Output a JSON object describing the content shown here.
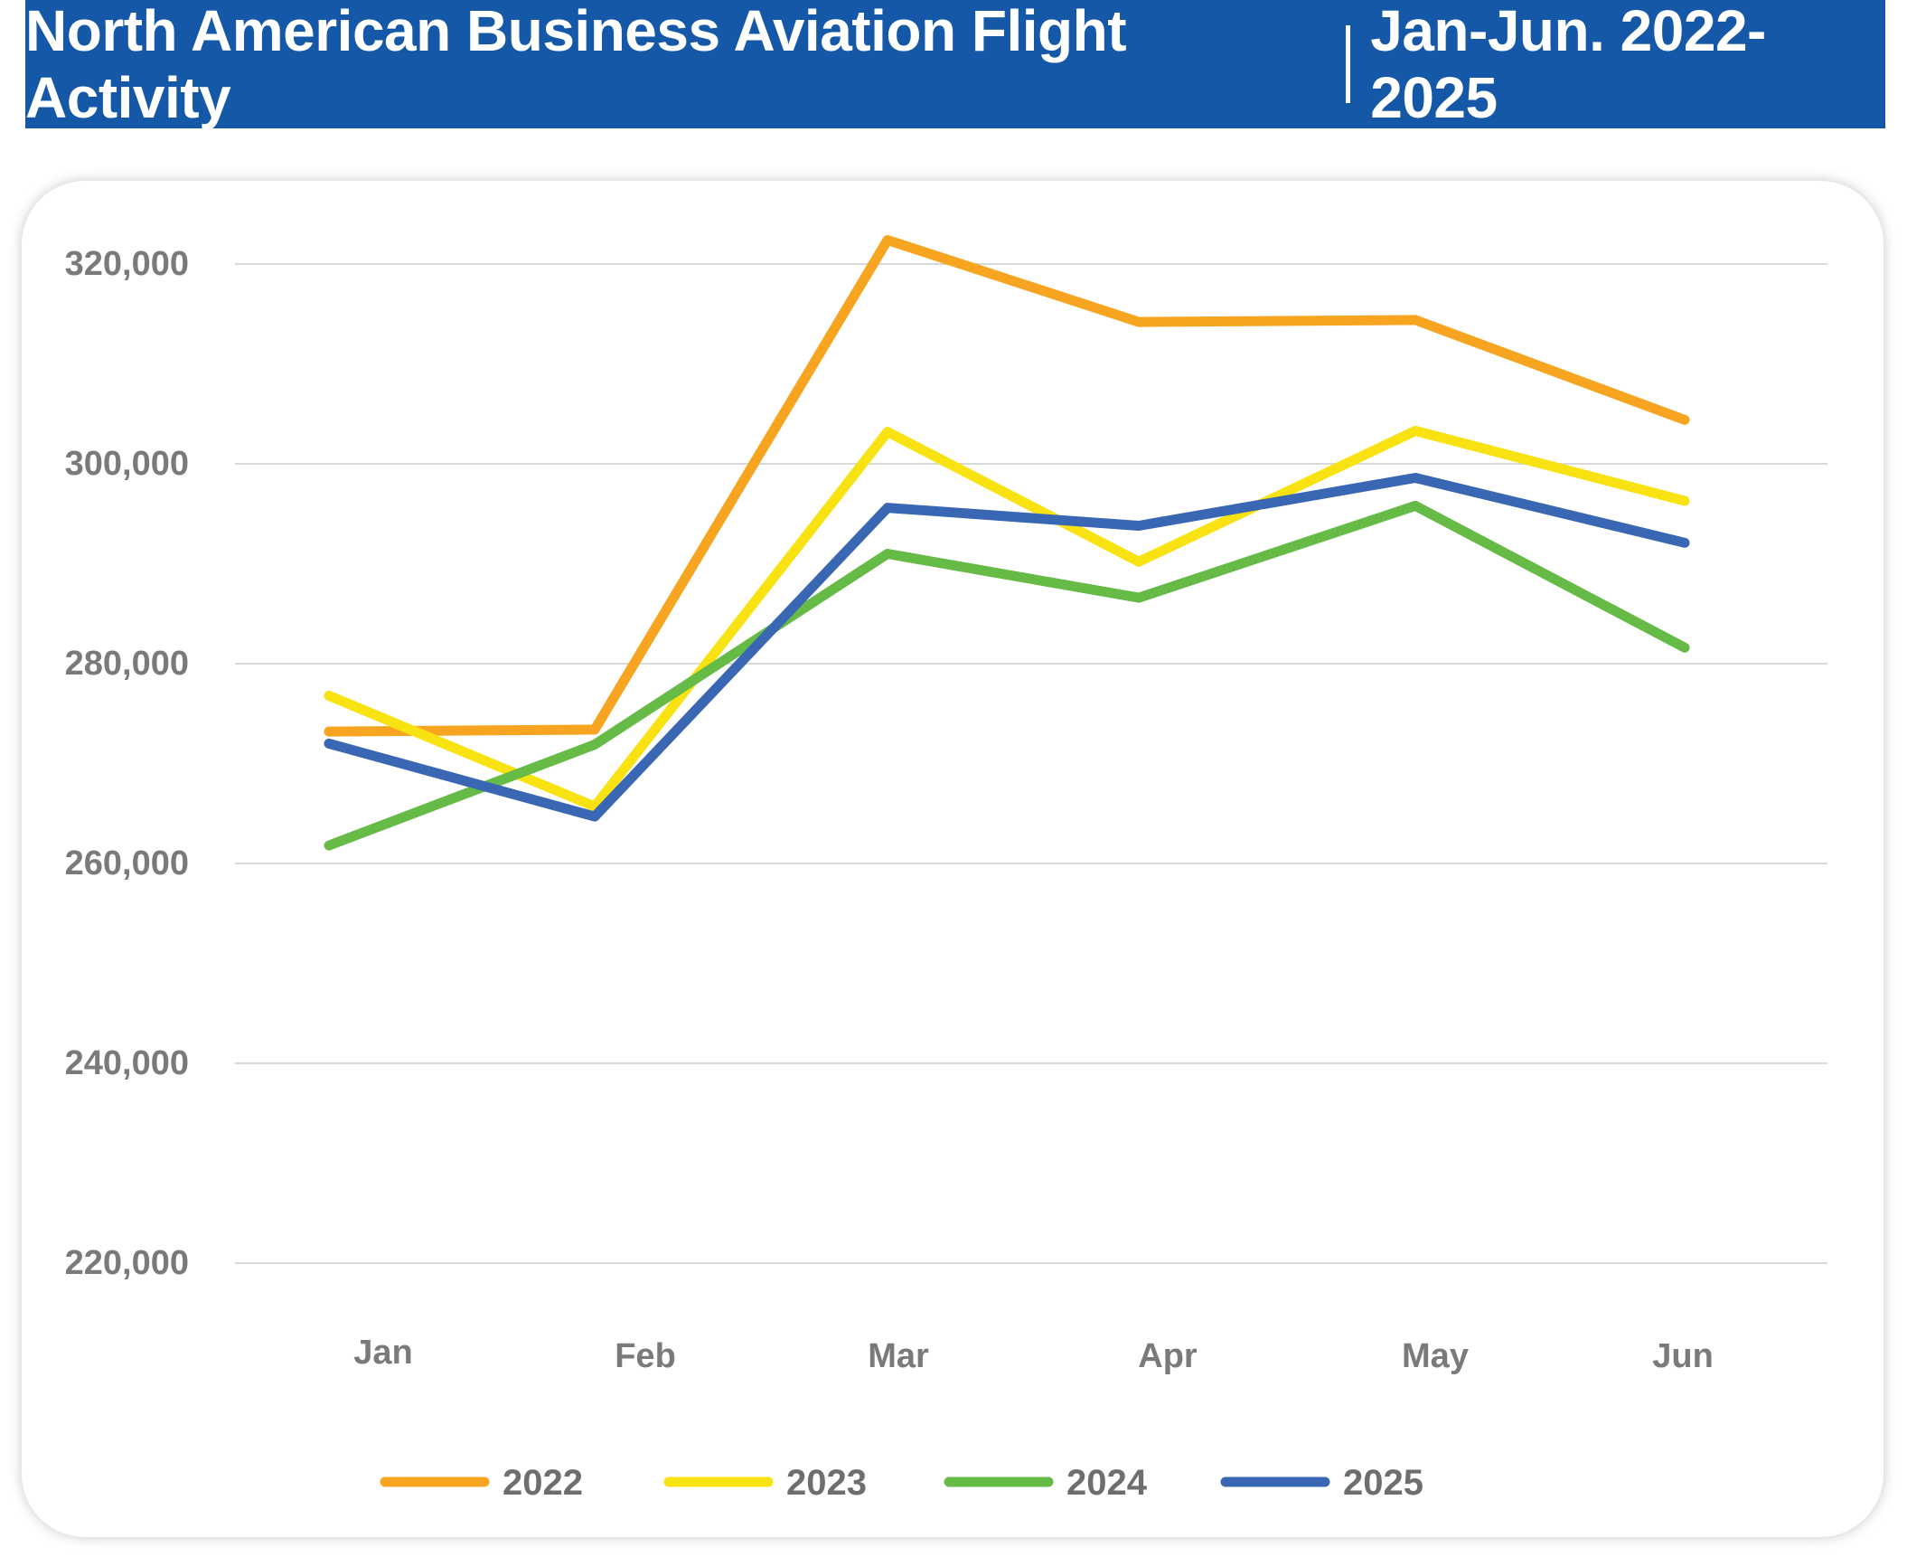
{
  "banner": {
    "title_left": "North American Business Aviation Flight Activity",
    "title_right": "Jan-Jun. 2022-2025",
    "background_color": "#1658a8"
  },
  "chart_data": {
    "type": "line",
    "categories": [
      "Jan",
      "Feb",
      "Mar",
      "Apr",
      "May",
      "Jun"
    ],
    "ylim": [
      220000,
      320000
    ],
    "yticks": [
      220000,
      240000,
      260000,
      280000,
      300000,
      320000
    ],
    "ytick_labels": [
      "220,000",
      "240,000",
      "260,000",
      "280,000",
      "300,000",
      "320,000"
    ],
    "grid": true,
    "legend_position": "bottom",
    "series": [
      {
        "name": "2022",
        "color": "#f7a521",
        "values": [
          273200,
          273400,
          322400,
          314200,
          314400,
          304400
        ]
      },
      {
        "name": "2023",
        "color": "#f9e211",
        "values": [
          276800,
          265700,
          303200,
          290200,
          303300,
          296300
        ]
      },
      {
        "name": "2024",
        "color": "#65bb46",
        "values": [
          261800,
          271900,
          291000,
          286600,
          295800,
          281600
        ]
      },
      {
        "name": "2025",
        "color": "#3a67b3",
        "values": [
          272000,
          264700,
          295600,
          293800,
          298600,
          292100
        ]
      }
    ]
  }
}
